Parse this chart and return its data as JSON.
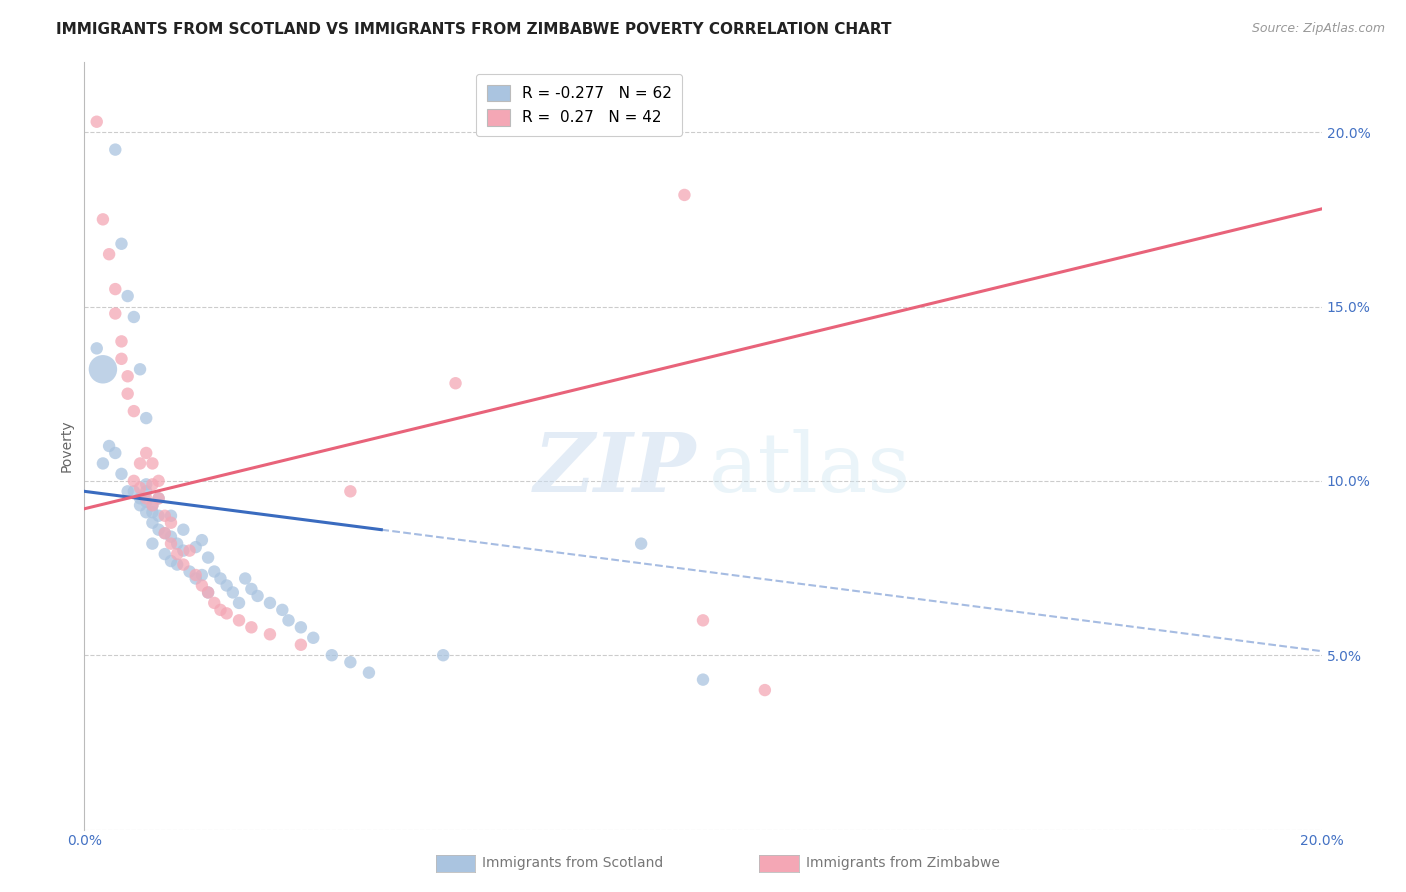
{
  "title": "IMMIGRANTS FROM SCOTLAND VS IMMIGRANTS FROM ZIMBABWE POVERTY CORRELATION CHART",
  "source": "Source: ZipAtlas.com",
  "ylabel": "Poverty",
  "xlim": [
    0.0,
    0.2
  ],
  "ylim": [
    0.0,
    0.22
  ],
  "yticks": [
    0.0,
    0.05,
    0.1,
    0.15,
    0.2
  ],
  "scotland_color": "#aac4e0",
  "zimbabwe_color": "#f4a7b5",
  "scotland_line_color": "#3a6bbf",
  "zimbabwe_line_color": "#e8637a",
  "scotland_R": -0.277,
  "scotland_N": 62,
  "zimbabwe_R": 0.27,
  "zimbabwe_N": 42,
  "background_color": "#ffffff",
  "grid_color": "#cccccc",
  "title_fontsize": 11,
  "tick_color": "#4472c4",
  "legend_fontsize": 11,
  "scotland_points": [
    [
      0.003,
      0.132
    ],
    [
      0.005,
      0.195
    ],
    [
      0.006,
      0.168
    ],
    [
      0.007,
      0.153
    ],
    [
      0.008,
      0.147
    ],
    [
      0.009,
      0.132
    ],
    [
      0.01,
      0.118
    ],
    [
      0.002,
      0.138
    ],
    [
      0.003,
      0.105
    ],
    [
      0.004,
      0.11
    ],
    [
      0.005,
      0.108
    ],
    [
      0.006,
      0.102
    ],
    [
      0.007,
      0.097
    ],
    [
      0.008,
      0.097
    ],
    [
      0.009,
      0.095
    ],
    [
      0.009,
      0.093
    ],
    [
      0.01,
      0.099
    ],
    [
      0.01,
      0.097
    ],
    [
      0.01,
      0.094
    ],
    [
      0.01,
      0.091
    ],
    [
      0.011,
      0.093
    ],
    [
      0.011,
      0.091
    ],
    [
      0.011,
      0.088
    ],
    [
      0.011,
      0.082
    ],
    [
      0.012,
      0.095
    ],
    [
      0.012,
      0.09
    ],
    [
      0.012,
      0.086
    ],
    [
      0.013,
      0.085
    ],
    [
      0.013,
      0.079
    ],
    [
      0.014,
      0.077
    ],
    [
      0.014,
      0.09
    ],
    [
      0.014,
      0.084
    ],
    [
      0.015,
      0.082
    ],
    [
      0.015,
      0.076
    ],
    [
      0.016,
      0.086
    ],
    [
      0.016,
      0.08
    ],
    [
      0.017,
      0.074
    ],
    [
      0.018,
      0.081
    ],
    [
      0.018,
      0.072
    ],
    [
      0.019,
      0.083
    ],
    [
      0.019,
      0.073
    ],
    [
      0.02,
      0.078
    ],
    [
      0.02,
      0.068
    ],
    [
      0.021,
      0.074
    ],
    [
      0.022,
      0.072
    ],
    [
      0.023,
      0.07
    ],
    [
      0.024,
      0.068
    ],
    [
      0.025,
      0.065
    ],
    [
      0.026,
      0.072
    ],
    [
      0.027,
      0.069
    ],
    [
      0.028,
      0.067
    ],
    [
      0.03,
      0.065
    ],
    [
      0.032,
      0.063
    ],
    [
      0.033,
      0.06
    ],
    [
      0.035,
      0.058
    ],
    [
      0.037,
      0.055
    ],
    [
      0.04,
      0.05
    ],
    [
      0.043,
      0.048
    ],
    [
      0.046,
      0.045
    ],
    [
      0.058,
      0.05
    ],
    [
      0.09,
      0.082
    ],
    [
      0.1,
      0.043
    ]
  ],
  "scotland_big_dot": [
    0.003,
    0.132
  ],
  "zimbabwe_points": [
    [
      0.002,
      0.203
    ],
    [
      0.003,
      0.175
    ],
    [
      0.004,
      0.165
    ],
    [
      0.005,
      0.155
    ],
    [
      0.005,
      0.148
    ],
    [
      0.006,
      0.14
    ],
    [
      0.006,
      0.135
    ],
    [
      0.007,
      0.13
    ],
    [
      0.007,
      0.125
    ],
    [
      0.008,
      0.12
    ],
    [
      0.008,
      0.1
    ],
    [
      0.009,
      0.105
    ],
    [
      0.009,
      0.098
    ],
    [
      0.01,
      0.108
    ],
    [
      0.01,
      0.095
    ],
    [
      0.011,
      0.105
    ],
    [
      0.011,
      0.099
    ],
    [
      0.011,
      0.093
    ],
    [
      0.012,
      0.1
    ],
    [
      0.012,
      0.095
    ],
    [
      0.013,
      0.09
    ],
    [
      0.013,
      0.085
    ],
    [
      0.014,
      0.088
    ],
    [
      0.014,
      0.082
    ],
    [
      0.015,
      0.079
    ],
    [
      0.016,
      0.076
    ],
    [
      0.017,
      0.08
    ],
    [
      0.018,
      0.073
    ],
    [
      0.019,
      0.07
    ],
    [
      0.02,
      0.068
    ],
    [
      0.021,
      0.065
    ],
    [
      0.022,
      0.063
    ],
    [
      0.023,
      0.062
    ],
    [
      0.025,
      0.06
    ],
    [
      0.027,
      0.058
    ],
    [
      0.03,
      0.056
    ],
    [
      0.035,
      0.053
    ],
    [
      0.043,
      0.097
    ],
    [
      0.06,
      0.128
    ],
    [
      0.097,
      0.182
    ],
    [
      0.1,
      0.06
    ],
    [
      0.11,
      0.04
    ]
  ],
  "scotland_line_x0": 0.0,
  "scotland_line_y0": 0.097,
  "scotland_line_x1": 0.048,
  "scotland_line_y1": 0.086,
  "scotland_line_solid_end": 0.048,
  "zimbabwe_line_x0": 0.0,
  "zimbabwe_line_y0": 0.092,
  "zimbabwe_line_x1": 0.2,
  "zimbabwe_line_y1": 0.178
}
